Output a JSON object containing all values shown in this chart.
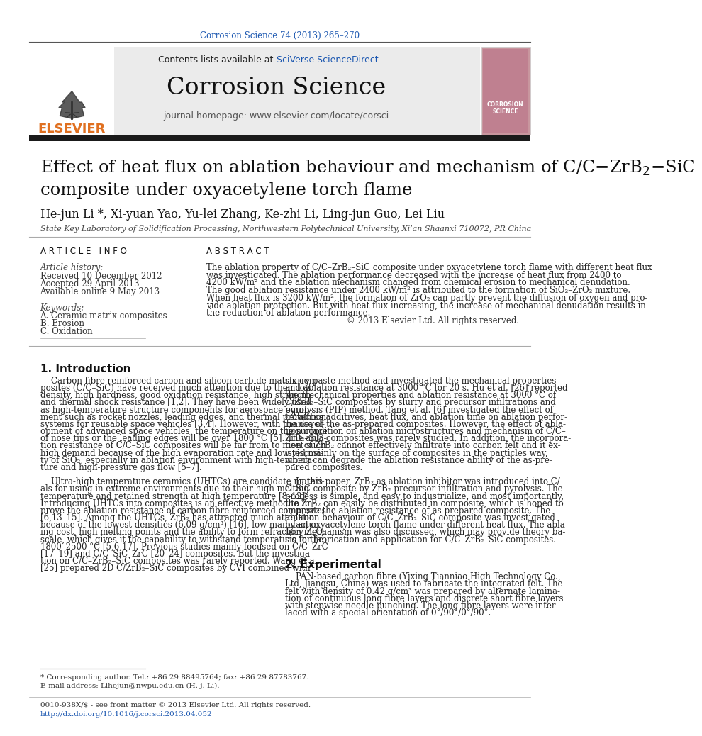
{
  "page_title": "Corrosion Science 74 (2013) 265–270",
  "journal_name": "Corrosion Science",
  "contents_line": "Contents lists available at SciVerse ScienceDirect",
  "journal_homepage": "journal homepage: www.elsevier.com/locate/corsci",
  "article_title_line1": "Effect of heat flux on ablation behaviour and mechanism of C/C–ZrB$_2$–SiC",
  "article_title_line2": "composite under oxyacetylene torch flame",
  "authors": "He-jun Li *, Xi-yuan Yao, Yu-lei Zhang, Ke-zhi Li, Ling-jun Guo, Lei Liu",
  "affiliation": "State Key Laboratory of Solidification Processing, Northwestern Polytechnical University, Xi’an Shaanxi 710072, PR China",
  "article_info_header": "A R T I C L E   I N F O",
  "abstract_header": "A B S T R A C T",
  "article_history_header": "Article history:",
  "received": "Received 10 December 2012",
  "accepted": "Accepted 29 April 2013",
  "online": "Available online 9 May 2013",
  "keywords_header": "Keywords:",
  "keyword1": "A. Ceramic-matrix composites",
  "keyword2": "B. Erosion",
  "keyword3": "C. Oxidation",
  "copyright": "© 2013 Elsevier Ltd. All rights reserved.",
  "intro_header": "1. Introduction",
  "section2_header": "2. Experimental",
  "footnote1": "* Corresponding author. Tel.: +86 29 88495764; fax: +86 29 87783767.",
  "footnote2": "E-mail address: Lihejun@nwpu.edu.cn (H.-j. Li).",
  "footer1": "0010-938X/$ - see front matter © 2013 Elsevier Ltd. All rights reserved.",
  "footer2": "http://dx.doi.org/10.1016/j.corsci.2013.04.052",
  "bg_color": "#ffffff",
  "link_color": "#1a56b0",
  "orange_color": "#e07020",
  "dark_bar_color": "#1a1a1a"
}
